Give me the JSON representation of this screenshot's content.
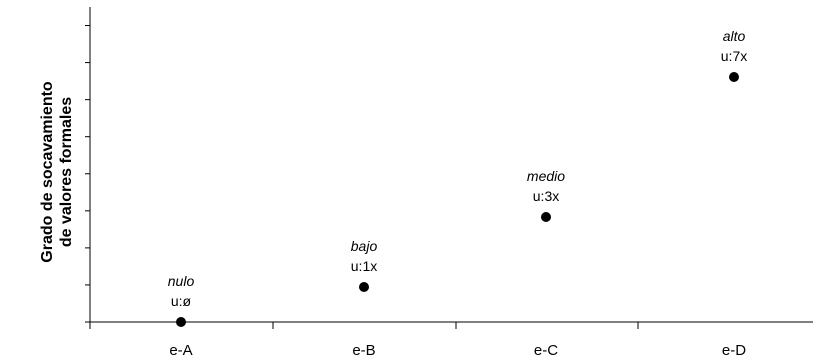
{
  "chart_data": {
    "type": "scatter",
    "title": "",
    "xlabel": "",
    "ylabel": "Grado de socavamiento de valores formales",
    "ylabel_lines": [
      "Grado de socavamiento",
      "de valores formales"
    ],
    "categories": [
      "e-A",
      "e-B",
      "e-C",
      "e-D"
    ],
    "points": [
      {
        "category": "e-A",
        "value": 0,
        "level": "nulo",
        "label": "u:ø"
      },
      {
        "category": "e-B",
        "value": 1,
        "level": "bajo",
        "label": "u:1x"
      },
      {
        "category": "e-C",
        "value": 3,
        "level": "medio",
        "label": "u:3x"
      },
      {
        "category": "e-D",
        "value": 7,
        "level": "alto",
        "label": "u:7x"
      }
    ],
    "ylim": [
      0,
      8
    ],
    "y_tick_count": 9,
    "y_tick_labels": false,
    "grid": false,
    "legend": "none",
    "marker_color": "#000000"
  }
}
